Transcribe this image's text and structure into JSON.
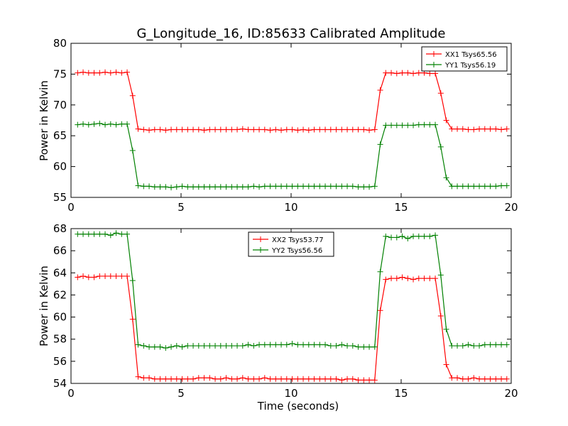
{
  "title": "G_Longitude_16, ID:85633 Calibrated Amplitude",
  "chart_data": [
    {
      "type": "line",
      "ylabel": "Power in Kelvin",
      "xlabel": "",
      "xlim": [
        0,
        20
      ],
      "ylim": [
        55,
        80
      ],
      "xticks": [
        0,
        5,
        10,
        15,
        20
      ],
      "yticks": [
        55,
        60,
        65,
        70,
        75,
        80
      ],
      "grid": false,
      "legend_position": "top-right",
      "x": [
        0.3,
        0.55,
        0.8,
        1.05,
        1.3,
        1.55,
        1.8,
        2.05,
        2.3,
        2.55,
        2.8,
        3.05,
        3.3,
        3.55,
        3.8,
        4.05,
        4.3,
        4.55,
        4.8,
        5.05,
        5.3,
        5.55,
        5.8,
        6.05,
        6.3,
        6.55,
        6.8,
        7.05,
        7.3,
        7.55,
        7.8,
        8.05,
        8.3,
        8.55,
        8.8,
        9.05,
        9.3,
        9.55,
        9.8,
        10.05,
        10.3,
        10.55,
        10.8,
        11.05,
        11.3,
        11.55,
        11.8,
        12.05,
        12.3,
        12.55,
        12.8,
        13.05,
        13.3,
        13.55,
        13.8,
        14.05,
        14.3,
        14.55,
        14.8,
        15.05,
        15.3,
        15.55,
        15.8,
        16.05,
        16.3,
        16.55,
        16.8,
        17.05,
        17.3,
        17.55,
        17.8,
        18.05,
        18.3,
        18.55,
        18.8,
        19.05,
        19.3,
        19.55,
        19.8
      ],
      "series": [
        {
          "name": "XX1 Tsys65.56",
          "color": "#ff0000",
          "values": [
            75.2,
            75.3,
            75.2,
            75.2,
            75.2,
            75.3,
            75.2,
            75.3,
            75.2,
            75.3,
            71.5,
            66.1,
            66.0,
            65.9,
            66.0,
            66.0,
            65.9,
            66.0,
            66.0,
            66.0,
            66.0,
            66.0,
            66.0,
            65.9,
            66.0,
            66.0,
            66.0,
            66.0,
            66.0,
            66.0,
            66.1,
            66.0,
            66.0,
            66.0,
            66.0,
            65.9,
            66.0,
            65.9,
            66.0,
            66.0,
            65.9,
            66.0,
            65.9,
            66.0,
            66.0,
            66.0,
            66.0,
            66.0,
            66.0,
            66.0,
            66.0,
            66.0,
            66.0,
            65.9,
            66.0,
            72.4,
            75.2,
            75.2,
            75.1,
            75.2,
            75.2,
            75.1,
            75.2,
            75.2,
            75.1,
            75.1,
            71.9,
            67.5,
            66.1,
            66.1,
            66.1,
            66.0,
            66.0,
            66.1,
            66.1,
            66.1,
            66.1,
            66.0,
            66.1
          ]
        },
        {
          "name": "YY1 Tsys56.19",
          "color": "#008000",
          "values": [
            66.8,
            66.9,
            66.8,
            66.9,
            67.0,
            66.8,
            66.9,
            66.8,
            66.9,
            66.9,
            62.6,
            56.9,
            56.8,
            56.8,
            56.7,
            56.7,
            56.7,
            56.6,
            56.7,
            56.8,
            56.7,
            56.7,
            56.7,
            56.7,
            56.7,
            56.7,
            56.7,
            56.7,
            56.7,
            56.7,
            56.7,
            56.7,
            56.8,
            56.7,
            56.8,
            56.8,
            56.8,
            56.8,
            56.8,
            56.8,
            56.8,
            56.8,
            56.8,
            56.8,
            56.8,
            56.8,
            56.8,
            56.8,
            56.8,
            56.8,
            56.8,
            56.7,
            56.7,
            56.7,
            56.8,
            63.6,
            66.7,
            66.7,
            66.7,
            66.7,
            66.7,
            66.7,
            66.8,
            66.8,
            66.8,
            66.8,
            63.2,
            58.2,
            56.8,
            56.8,
            56.8,
            56.8,
            56.8,
            56.8,
            56.8,
            56.8,
            56.8,
            56.9,
            56.9
          ]
        }
      ]
    },
    {
      "type": "line",
      "ylabel": "Power in Kelvin",
      "xlabel": "Time (seconds)",
      "xlim": [
        0,
        20
      ],
      "ylim": [
        54,
        68
      ],
      "xticks": [
        0,
        5,
        10,
        15,
        20
      ],
      "yticks": [
        54,
        56,
        58,
        60,
        62,
        64,
        66,
        68
      ],
      "grid": false,
      "legend_position": "top-center",
      "x": [
        0.3,
        0.55,
        0.8,
        1.05,
        1.3,
        1.55,
        1.8,
        2.05,
        2.3,
        2.55,
        2.8,
        3.05,
        3.3,
        3.55,
        3.8,
        4.05,
        4.3,
        4.55,
        4.8,
        5.05,
        5.3,
        5.55,
        5.8,
        6.05,
        6.3,
        6.55,
        6.8,
        7.05,
        7.3,
        7.55,
        7.8,
        8.05,
        8.3,
        8.55,
        8.8,
        9.05,
        9.3,
        9.55,
        9.8,
        10.05,
        10.3,
        10.55,
        10.8,
        11.05,
        11.3,
        11.55,
        11.8,
        12.05,
        12.3,
        12.55,
        12.8,
        13.05,
        13.3,
        13.55,
        13.8,
        14.05,
        14.3,
        14.55,
        14.8,
        15.05,
        15.3,
        15.55,
        15.8,
        16.05,
        16.3,
        16.55,
        16.8,
        17.05,
        17.3,
        17.55,
        17.8,
        18.05,
        18.3,
        18.55,
        18.8,
        19.05,
        19.3,
        19.55,
        19.8
      ],
      "series": [
        {
          "name": "XX2 Tsys53.77",
          "color": "#ff0000",
          "values": [
            63.6,
            63.7,
            63.6,
            63.6,
            63.7,
            63.7,
            63.7,
            63.7,
            63.7,
            63.7,
            59.8,
            54.6,
            54.5,
            54.5,
            54.4,
            54.4,
            54.4,
            54.4,
            54.4,
            54.4,
            54.4,
            54.4,
            54.5,
            54.5,
            54.5,
            54.4,
            54.4,
            54.5,
            54.4,
            54.4,
            54.5,
            54.4,
            54.4,
            54.4,
            54.5,
            54.4,
            54.4,
            54.4,
            54.4,
            54.4,
            54.4,
            54.4,
            54.4,
            54.4,
            54.4,
            54.4,
            54.4,
            54.4,
            54.3,
            54.4,
            54.4,
            54.3,
            54.3,
            54.3,
            54.3,
            60.6,
            63.4,
            63.5,
            63.5,
            63.6,
            63.5,
            63.4,
            63.5,
            63.5,
            63.5,
            63.5,
            60.1,
            55.7,
            54.5,
            54.5,
            54.4,
            54.4,
            54.5,
            54.4,
            54.4,
            54.4,
            54.4,
            54.4,
            54.4
          ]
        },
        {
          "name": "YY2 Tsys56.56",
          "color": "#008000",
          "values": [
            67.5,
            67.5,
            67.5,
            67.5,
            67.5,
            67.5,
            67.4,
            67.6,
            67.5,
            67.5,
            63.3,
            57.5,
            57.4,
            57.3,
            57.3,
            57.3,
            57.2,
            57.3,
            57.4,
            57.3,
            57.4,
            57.4,
            57.4,
            57.4,
            57.4,
            57.4,
            57.4,
            57.4,
            57.4,
            57.4,
            57.4,
            57.5,
            57.4,
            57.5,
            57.5,
            57.5,
            57.5,
            57.5,
            57.5,
            57.6,
            57.5,
            57.5,
            57.5,
            57.5,
            57.5,
            57.5,
            57.4,
            57.4,
            57.5,
            57.4,
            57.4,
            57.3,
            57.3,
            57.3,
            57.3,
            64.1,
            67.3,
            67.2,
            67.2,
            67.3,
            67.1,
            67.3,
            67.3,
            67.3,
            67.3,
            67.4,
            63.8,
            58.9,
            57.4,
            57.4,
            57.4,
            57.5,
            57.4,
            57.4,
            57.5,
            57.5,
            57.5,
            57.5,
            57.5
          ]
        }
      ]
    }
  ]
}
